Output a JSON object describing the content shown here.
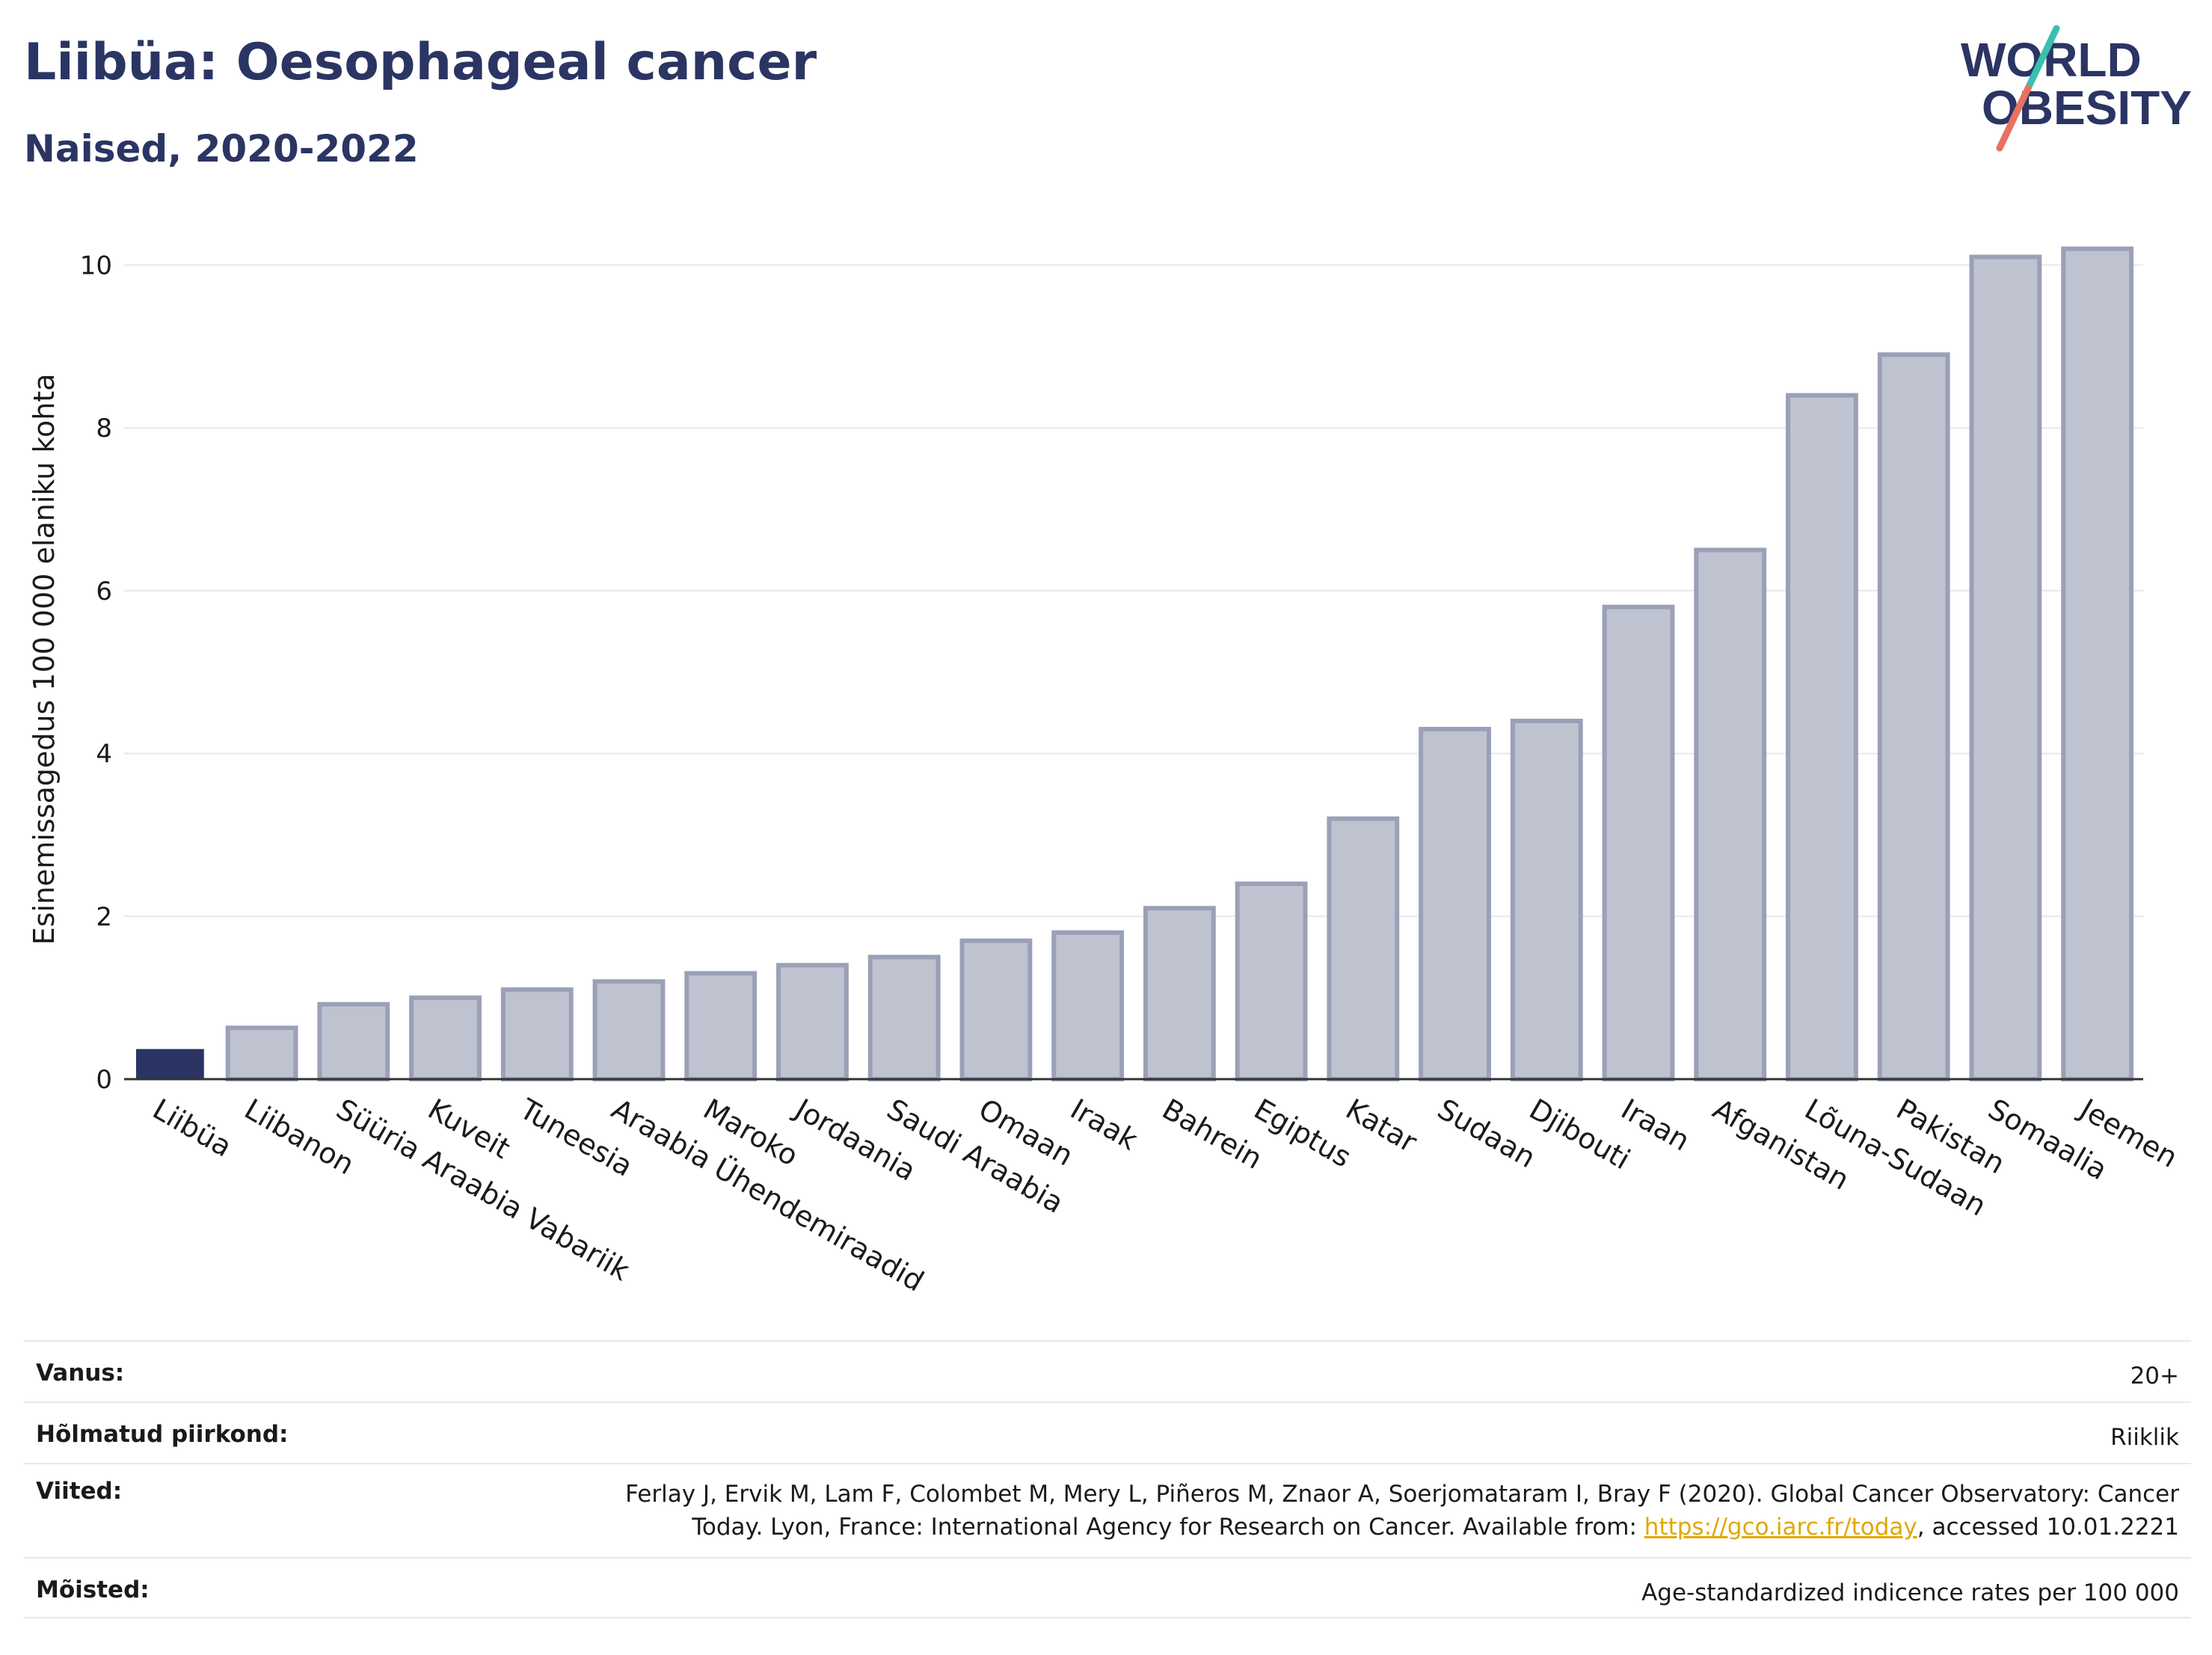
{
  "title": "Liibüa: Oesophageal cancer",
  "subtitle": "Naised, 2020-2022",
  "logo": {
    "line1": "WORLD",
    "line2": "OBESITY",
    "slash_colors": [
      "#3bbfb0",
      "#e8715f"
    ],
    "text_color": "#2b3563"
  },
  "colors": {
    "highlight": "#2b3563",
    "bar": "#bfc3d0",
    "bar_stroke": "#9aa0b7",
    "grid": "#e6e8ee",
    "axis": "#333333"
  },
  "chart_data": {
    "type": "bar",
    "title": "Liibüa: Oesophageal cancer",
    "subtitle": "Naised, 2020-2022",
    "xlabel": "",
    "ylabel": "Esinemissagedus 100 000 elaniku kohta",
    "ylim": [
      0,
      10.5
    ],
    "yticks": [
      0,
      2,
      4,
      6,
      8,
      10
    ],
    "grid": true,
    "highlight_category": "Liibüa",
    "categories": [
      "Liibüa",
      "Liibanon",
      "Süüria Araabia Vabariik",
      "Kuveit",
      "Tuneesia",
      "Araabia Ühendemiraadid",
      "Maroko",
      "Jordaania",
      "Saudi Araabia",
      "Omaan",
      "Iraak",
      "Bahrein",
      "Egiptus",
      "Katar",
      "Sudaan",
      "Djibouti",
      "Iraan",
      "Afganistan",
      "Lõuna-Sudaan",
      "Pakistan",
      "Somaalia",
      "Jeemen"
    ],
    "values": [
      0.37,
      0.63,
      0.92,
      1.0,
      1.1,
      1.2,
      1.3,
      1.4,
      1.5,
      1.7,
      1.8,
      2.1,
      2.4,
      3.2,
      4.3,
      4.4,
      5.8,
      6.5,
      8.4,
      8.9,
      10.1,
      10.2
    ]
  },
  "info": {
    "age_label": "Vanus:",
    "age_value": "20+",
    "region_label": "Hõlmatud piirkond:",
    "region_value": "Riiklik",
    "refs_label": "Viited:",
    "refs_line1": "Ferlay J, Ervik M, Lam F, Colombet M, Mery L, Piñeros M, Znaor A, Soerjomataram I, Bray F (2020). Global Cancer Observatory: Cancer",
    "refs_line2_pre": "Today. Lyon, France: International Agency for Research on Cancer. Available from: ",
    "refs_link": "https://gco.iarc.fr/today",
    "refs_line2_post": ", accessed 10.01.2221",
    "defs_label": "Mõisted:",
    "defs_value": "Age-standardized indicence rates per 100 000"
  }
}
